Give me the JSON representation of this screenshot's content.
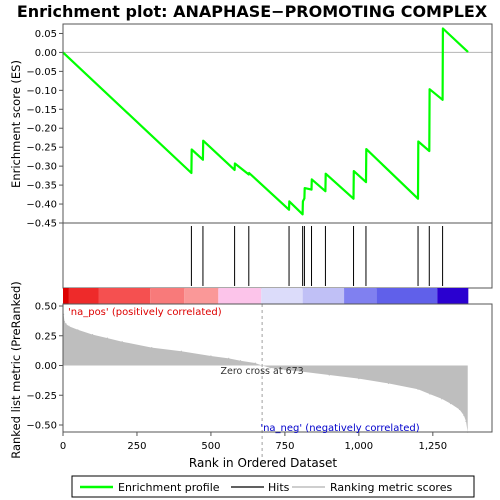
{
  "chart_data": {
    "type": "line",
    "title": "Enrichment plot: ANAPHASE−PROMOTING COMPLEX",
    "top_panel": {
      "ylabel": "Enrichment score (ES)",
      "ylim": [
        -0.45,
        0.075
      ],
      "yticks": [
        "0.05",
        "0.00",
        "−0.05",
        "−0.10",
        "−0.15",
        "−0.20",
        "−0.25",
        "−0.30",
        "−0.35",
        "−0.40",
        "−0.45"
      ],
      "ytick_values": [
        0.05,
        0.0,
        -0.05,
        -0.1,
        -0.15,
        -0.2,
        -0.25,
        -0.3,
        -0.35,
        -0.4,
        -0.45
      ],
      "series": [
        {
          "name": "Enrichment profile",
          "color": "#00ff00",
          "x": [
            0,
            434,
            435,
            473,
            474,
            580,
            581,
            628,
            629,
            764,
            765,
            810,
            811,
            816,
            817,
            840,
            841,
            887,
            888,
            982,
            983,
            1024,
            1025,
            1200,
            1201,
            1238,
            1239,
            1283,
            1284,
            1368
          ],
          "y": [
            0.0,
            -0.318,
            -0.256,
            -0.283,
            -0.233,
            -0.31,
            -0.293,
            -0.322,
            -0.318,
            -0.415,
            -0.393,
            -0.427,
            -0.393,
            -0.385,
            -0.358,
            -0.362,
            -0.335,
            -0.366,
            -0.32,
            -0.386,
            -0.313,
            -0.342,
            -0.255,
            -0.386,
            -0.235,
            -0.26,
            -0.097,
            -0.125,
            0.063,
            0.002
          ]
        }
      ]
    },
    "hits": {
      "name": "Hits",
      "x": [
        434,
        473,
        580,
        628,
        764,
        810,
        816,
        840,
        887,
        982,
        1024,
        1200,
        1238,
        1283
      ]
    },
    "colorbar": {
      "segments": [
        {
          "from": 0,
          "to": 20,
          "color": "#dd0000"
        },
        {
          "from": 20,
          "to": 120,
          "color": "#ee2a2a"
        },
        {
          "from": 120,
          "to": 295,
          "color": "#f55050"
        },
        {
          "from": 295,
          "to": 410,
          "color": "#f87a7a"
        },
        {
          "from": 410,
          "to": 525,
          "color": "#fa9898"
        },
        {
          "from": 525,
          "to": 670,
          "color": "#fcc4ea"
        },
        {
          "from": 670,
          "to": 810,
          "color": "#dcdcfa"
        },
        {
          "from": 810,
          "to": 950,
          "color": "#c0c0f6"
        },
        {
          "from": 950,
          "to": 1060,
          "color": "#8080f0"
        },
        {
          "from": 1060,
          "to": 1265,
          "color": "#6060ea"
        },
        {
          "from": 1265,
          "to": 1370,
          "color": "#2a00d0"
        }
      ]
    },
    "bottom_panel": {
      "ylabel": "Ranked list metric (PreRanked)",
      "xlabel": "Rank in Ordered Dataset",
      "ylim": [
        -0.575,
        0.575
      ],
      "yticks": [
        "0.50",
        "0.25",
        "0.00",
        "−0.25",
        "−0.50"
      ],
      "ytick_values": [
        0.5,
        0.25,
        0.0,
        -0.25,
        -0.5
      ],
      "xlim": [
        0,
        1450
      ],
      "xticks": [
        "0",
        "250",
        "500",
        "750",
        "1,000",
        "1,250"
      ],
      "xtick_values": [
        0,
        250,
        500,
        750,
        1000,
        1250
      ],
      "series": [
        {
          "name": "Ranking metric scores",
          "color": "#bebebe",
          "x": [
            0,
            2,
            5,
            10,
            20,
            50,
            100,
            150,
            200,
            300,
            400,
            500,
            560,
            600,
            650,
            673,
            700,
            750,
            800,
            900,
            1000,
            1100,
            1200,
            1240,
            1280,
            1310,
            1340,
            1355,
            1362,
            1368
          ],
          "y": [
            0.5,
            0.43,
            0.37,
            0.35,
            0.33,
            0.3,
            0.26,
            0.23,
            0.2,
            0.15,
            0.12,
            0.08,
            0.06,
            0.04,
            0.02,
            0.0,
            -0.02,
            -0.035,
            -0.05,
            -0.08,
            -0.11,
            -0.15,
            -0.2,
            -0.24,
            -0.28,
            -0.32,
            -0.37,
            -0.42,
            -0.47,
            -0.56
          ]
        }
      ],
      "zero_cross_x": 673,
      "annotations": {
        "pos_label": "'na_pos' (positively correlated)",
        "neg_label": "'na_neg' (negatively correlated)",
        "zero_cross_label": "Zero cross at 673"
      }
    },
    "legend": {
      "placement": "bottom",
      "items": [
        {
          "label": "Enrichment profile",
          "color": "#00ff00"
        },
        {
          "label": "Hits",
          "color": "#000000"
        },
        {
          "label": "Ranking metric scores",
          "color": "#bebebe"
        }
      ]
    }
  }
}
